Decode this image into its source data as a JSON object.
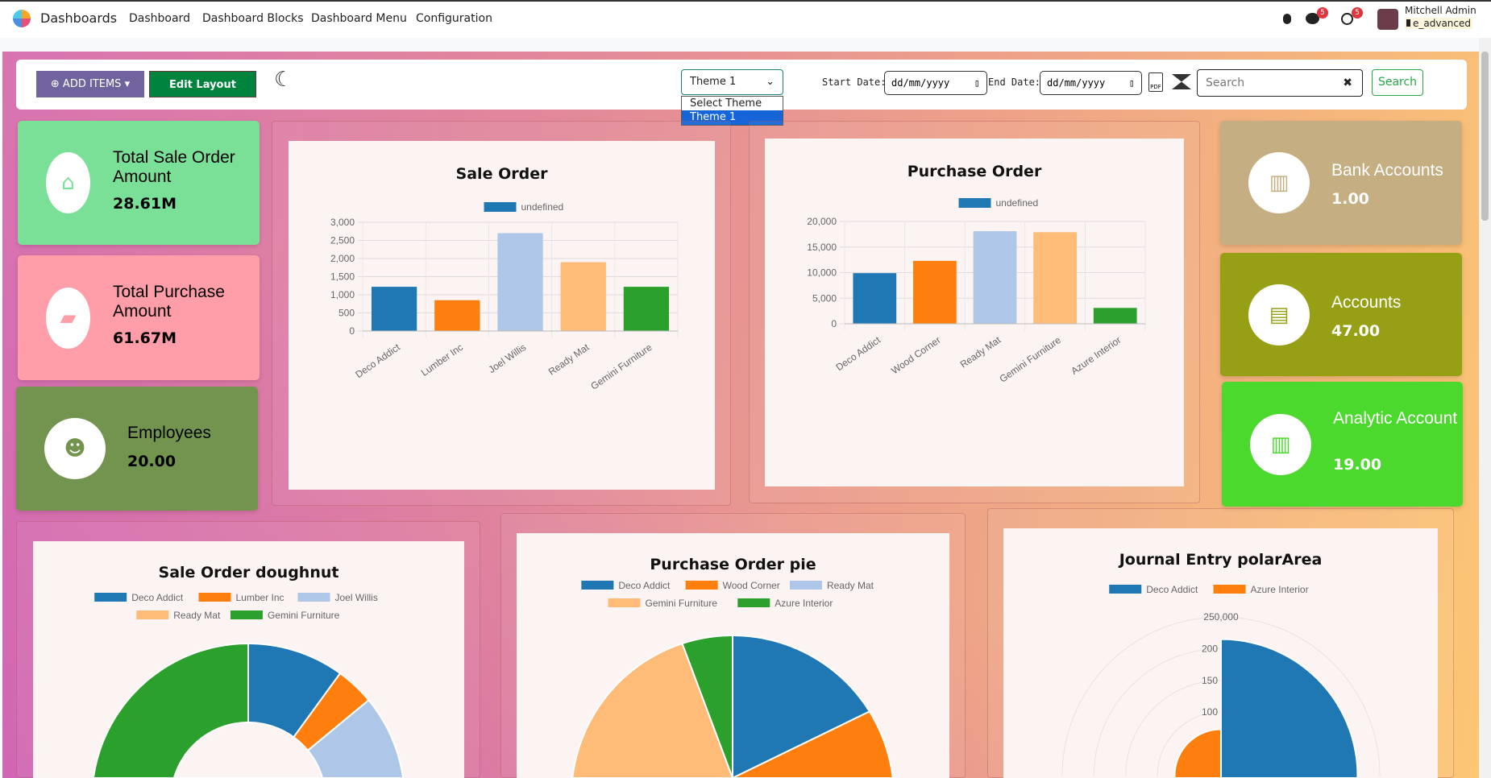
{
  "nav": {
    "app": "Dashboards",
    "items": [
      "Dashboard",
      "Dashboard Blocks",
      "Dashboard Menu",
      "Configuration"
    ],
    "chat_badge": "5",
    "activity_badge": "5",
    "user": "Mitchell Admin",
    "db": "e_advanced"
  },
  "toolbar": {
    "add_items": "ADD ITEMS",
    "edit_layout": "Edit Layout",
    "theme_value": "Theme 1",
    "theme_options": [
      "Select Theme",
      "Theme 1"
    ],
    "start_label": "Start Date:",
    "end_label": "End Date:",
    "date_placeholder": "dd/mm/yyyy",
    "pdf": "PDF",
    "search_placeholder": "Search",
    "search_button": "Search"
  },
  "tiles": [
    {
      "title": "Total Sale Order Amount",
      "value": "28.61M",
      "color": "#7ae098",
      "icon": "store-icon"
    },
    {
      "title": "Total Purchase Amount",
      "value": "61.67M",
      "color": "#ff9ea8",
      "icon": "shopping-bag-icon"
    },
    {
      "title": "Employees",
      "value": "20.00",
      "color": "#72944f",
      "icon": "users-icon"
    },
    {
      "title": "Bank Accounts",
      "value": "1.00",
      "color": "#c4ae82",
      "icon": "bank-icon"
    },
    {
      "title": "Accounts",
      "value": "47.00",
      "color": "#97a015",
      "icon": "address-card-icon"
    },
    {
      "title": "Analytic Account",
      "value": "19.00",
      "color": "#4cd92e",
      "icon": "bar-chart-icon"
    }
  ],
  "chart_data": [
    {
      "type": "bar",
      "title": "Sale Order",
      "legend": [
        "undefined"
      ],
      "categories": [
        "Deco Addict",
        "Lumber Inc",
        "Joel Willis",
        "Ready Mat",
        "Gemini Furniture"
      ],
      "values": [
        1220,
        850,
        2700,
        1900,
        1220
      ],
      "ylim": [
        0,
        3000
      ],
      "yticks": [
        "0",
        "500",
        "1,000",
        "1,500",
        "2,000",
        "2,500",
        "3,000"
      ],
      "colors": [
        "#1f77b4",
        "#ff7f0e",
        "#aec7e8",
        "#ffbb78",
        "#2ca02c"
      ]
    },
    {
      "type": "bar",
      "title": "Purchase Order",
      "legend": [
        "undefined"
      ],
      "categories": [
        "Deco Addict",
        "Wood Corner",
        "Ready Mat",
        "Gemini Furniture",
        "Azure Interior"
      ],
      "values": [
        9900,
        12300,
        18100,
        17900,
        3100
      ],
      "ylim": [
        0,
        20000
      ],
      "yticks": [
        "0",
        "5,000",
        "10,000",
        "15,000",
        "20,000"
      ],
      "colors": [
        "#1f77b4",
        "#ff7f0e",
        "#aec7e8",
        "#ffbb78",
        "#2ca02c"
      ]
    },
    {
      "type": "doughnut",
      "title": "Sale Order doughnut",
      "categories": [
        "Deco Addict",
        "Lumber Inc",
        "Joel Willis",
        "Ready Mat",
        "Gemini Furniture"
      ],
      "values": [
        10,
        4,
        22,
        30,
        34
      ],
      "colors": [
        "#1f77b4",
        "#ff7f0e",
        "#aec7e8",
        "#ffbb78",
        "#2ca02c"
      ]
    },
    {
      "type": "pie",
      "title": "Purchase Order pie",
      "categories": [
        "Deco Addict",
        "Wood Corner",
        "Ready Mat",
        "Gemini Furniture",
        "Azure Interior"
      ],
      "values": [
        9900,
        12300,
        18100,
        17900,
        3100
      ],
      "colors": [
        "#1f77b4",
        "#ff7f0e",
        "#aec7e8",
        "#ffbb78",
        "#2ca02c"
      ]
    },
    {
      "type": "polarArea",
      "title": "Journal Entry polarArea",
      "categories": [
        "Deco Addict",
        "Azure Interior"
      ],
      "values": [
        215000,
        73000
      ],
      "rmax": 250000,
      "rticks": [
        "250,000",
        "200",
        "150",
        "100"
      ],
      "colors": [
        "#1f77b4",
        "#ff7f0e"
      ]
    }
  ]
}
